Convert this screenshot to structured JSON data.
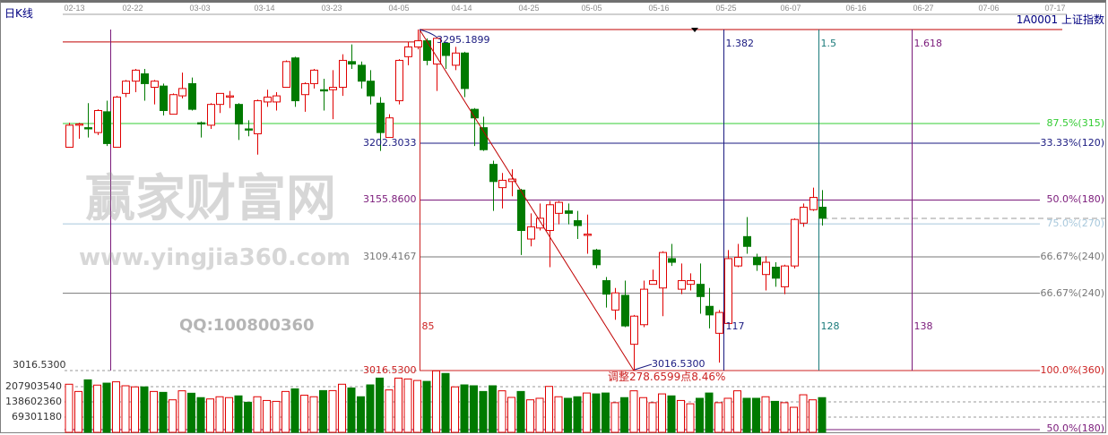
{
  "header": {
    "period_label": "日K线",
    "symbol_label": "1A0001 上证指数"
  },
  "watermark": {
    "site_name": "赢家财富网",
    "url": "www.yingjia360.com",
    "qq": "QQ:100800360"
  },
  "colors": {
    "up": "#e00000",
    "down": "#007a00",
    "fib_top": "#c00000",
    "grid_dash": "#9a9a9a"
  },
  "chart_data": {
    "type": "candlestick",
    "x_ticks": [
      "02-13",
      "02-22",
      "03-03",
      "03-14",
      "03-23",
      "04-05",
      "04-14",
      "04-25",
      "05-05",
      "05-16",
      "05-25",
      "06-07",
      "06-16",
      "06-27",
      "07-06",
      "07-17"
    ],
    "price_range": [
      3016.53,
      3295.1899
    ],
    "candles_ohlc": [
      [
        3199,
        3219,
        3199,
        3217
      ],
      [
        3217,
        3219,
        3206,
        3218
      ],
      [
        3215,
        3235,
        3207,
        3214
      ],
      [
        3211,
        3230,
        3209,
        3229
      ],
      [
        3228,
        3237,
        3200,
        3202
      ],
      [
        3199,
        3241,
        3199,
        3240
      ],
      [
        3243,
        3254,
        3240,
        3253
      ],
      [
        3253,
        3263,
        3244,
        3262
      ],
      [
        3259,
        3263,
        3237,
        3251
      ],
      [
        3248,
        3254,
        3234,
        3253
      ],
      [
        3249,
        3251,
        3225,
        3229
      ],
      [
        3226,
        3243,
        3226,
        3242
      ],
      [
        3241,
        3260,
        3239,
        3247
      ],
      [
        3251,
        3256,
        3229,
        3230
      ],
      [
        3219,
        3220,
        3207,
        3218
      ],
      [
        3217,
        3235,
        3214,
        3234
      ],
      [
        3234,
        3243,
        3227,
        3243
      ],
      [
        3240,
        3245,
        3231,
        3241
      ],
      [
        3234,
        3235,
        3205,
        3218
      ],
      [
        3214,
        3221,
        3208,
        3213
      ],
      [
        3210,
        3238,
        3193,
        3237
      ],
      [
        3236,
        3246,
        3232,
        3240
      ],
      [
        3236,
        3244,
        3229,
        3241
      ],
      [
        3248,
        3270,
        3248,
        3269
      ],
      [
        3272,
        3273,
        3232,
        3237
      ],
      [
        3242,
        3252,
        3228,
        3251
      ],
      [
        3251,
        3263,
        3247,
        3262
      ],
      [
        3246,
        3255,
        3229,
        3245
      ],
      [
        3246,
        3262,
        3222,
        3248
      ],
      [
        3248,
        3275,
        3241,
        3270
      ],
      [
        3269,
        3283,
        3263,
        3267
      ],
      [
        3266,
        3269,
        3247,
        3253
      ],
      [
        3253,
        3262,
        3234,
        3241
      ],
      [
        3235,
        3240,
        3196,
        3211
      ],
      [
        3207,
        3226,
        3207,
        3223
      ],
      [
        3237,
        3271,
        3234,
        3270
      ],
      [
        3273,
        3285,
        3266,
        3281
      ],
      [
        3281,
        3295.19,
        3279,
        3286
      ],
      [
        3286,
        3288,
        3266,
        3270
      ],
      [
        3267,
        3289,
        3245,
        3288
      ],
      [
        3284,
        3285,
        3263,
        3274
      ],
      [
        3266,
        3281,
        3262,
        3276
      ],
      [
        3276,
        3277,
        3240,
        3247
      ],
      [
        3230,
        3231,
        3200,
        3223
      ],
      [
        3215,
        3224,
        3196,
        3197
      ],
      [
        3185,
        3188,
        3147,
        3171
      ],
      [
        3166,
        3178,
        3149,
        3172
      ],
      [
        3171,
        3181,
        3159,
        3173
      ],
      [
        3164,
        3165,
        3111,
        3131
      ],
      [
        3124,
        3145,
        3118,
        3134
      ],
      [
        3133,
        3153,
        3131,
        3141
      ],
      [
        3131,
        3155,
        3101,
        3152
      ],
      [
        3145,
        3155,
        3136,
        3154
      ],
      [
        3147,
        3153,
        3136,
        3145
      ],
      [
        3139,
        3147,
        3124,
        3135
      ],
      [
        3127,
        3144,
        3112,
        3128
      ],
      [
        3115,
        3116,
        3100,
        3103
      ],
      [
        3090,
        3093,
        3068,
        3079
      ],
      [
        3066,
        3084,
        3058,
        3080
      ],
      [
        3078,
        3090,
        3052,
        3053
      ],
      [
        3038,
        3062,
        3016.53,
        3061
      ],
      [
        3054,
        3090,
        3052,
        3083
      ],
      [
        3087,
        3099,
        3087,
        3090
      ],
      [
        3084,
        3114,
        3061,
        3113
      ],
      [
        3108,
        3120,
        3102,
        3105
      ],
      [
        3083,
        3104,
        3079,
        3090
      ],
      [
        3087,
        3096,
        3082,
        3090
      ],
      [
        3087,
        3104,
        3063,
        3077
      ],
      [
        3069,
        3084,
        3051,
        3062
      ],
      [
        3047,
        3066,
        3023,
        3064
      ],
      [
        3055,
        3115,
        3055,
        3108
      ],
      [
        3102,
        3120,
        3101,
        3109
      ],
      [
        3126,
        3142,
        3112,
        3118
      ],
      [
        3109,
        3112,
        3098,
        3103
      ],
      [
        3095,
        3110,
        3082,
        3105
      ],
      [
        3101,
        3105,
        3085,
        3092
      ],
      [
        3085,
        3103,
        3079,
        3102
      ],
      [
        3102,
        3141,
        3100,
        3140
      ],
      [
        3137,
        3153,
        3134,
        3150
      ],
      [
        3148,
        3166,
        3147,
        3158
      ],
      [
        3150,
        3164,
        3135,
        3141
      ]
    ],
    "volumes": [
      219000000,
      186000000,
      239000000,
      215000000,
      224000000,
      230000000,
      212000000,
      207000000,
      207000000,
      186000000,
      182000000,
      148000000,
      189000000,
      178000000,
      158000000,
      152000000,
      162000000,
      158000000,
      166000000,
      137000000,
      162000000,
      145000000,
      141000000,
      186000000,
      198000000,
      169000000,
      162000000,
      190000000,
      190000000,
      219000000,
      202000000,
      162000000,
      216000000,
      247000000,
      193000000,
      247000000,
      243000000,
      236000000,
      232000000,
      280000000,
      268000000,
      207000000,
      216000000,
      212000000,
      186000000,
      212000000,
      189000000,
      159000000,
      186000000,
      148000000,
      155000000,
      209000000,
      162000000,
      155000000,
      162000000,
      179000000,
      175000000,
      179000000,
      135000000,
      158000000,
      189000000,
      158000000,
      135000000,
      175000000,
      166000000,
      145000000,
      130000000,
      155000000,
      179000000,
      135000000,
      155000000,
      189000000,
      155000000,
      155000000,
      162000000,
      141000000,
      135000000,
      114000000,
      171000000,
      148000000,
      158000000
    ],
    "volume_axis_labels": [
      "207903540",
      "138602360",
      "69301180"
    ],
    "volume_axis_values": [
      207903540,
      138602360,
      69301180
    ],
    "price_axis_label": "3016.5300",
    "high_label": "3295.1899",
    "low_label": "3016.5300",
    "adjust_label": "调整278.6599点8.46%",
    "fib_levels": [
      {
        "label": "87.5%(315)",
        "price": 3218.4,
        "color": "#33cc33",
        "left_label": "",
        "full": true
      },
      {
        "label": "33.33%(120)",
        "price": 3202.3033,
        "color": "#1a1a80",
        "left_label": "3202.3033",
        "full": false
      },
      {
        "label": "50.0%(180)",
        "price": 3155.86,
        "color": "#7a1a7a",
        "left_label": "3155.8600",
        "full": false
      },
      {
        "label": "75.0%(270)",
        "price": 3136.4,
        "color": "#a8c8dc",
        "left_label": "",
        "full": true
      },
      {
        "label": "66.67%(240)",
        "price": 3109.4167,
        "color": "#777777",
        "left_label": "3109.4167",
        "full": false
      },
      {
        "label": "66.67%(240)",
        "price": 3079.7,
        "color": "#777777",
        "left_label": "",
        "full": true
      },
      {
        "label": "100.0%(360)",
        "price": 3016.53,
        "color": "#cc2222",
        "left_label": "3016.5300",
        "full": false
      }
    ],
    "volume_fib_label": "50.0%(180)",
    "time_lines": [
      {
        "slot": 5.4,
        "color": "#7a1a7a",
        "top_label": "",
        "bottom_label": ""
      },
      {
        "slot": 38.2,
        "color": "#cc2222",
        "top_label": "",
        "bottom_label": "85"
      },
      {
        "slot": 70.5,
        "color": "#1a1a80",
        "top_label": "1.382",
        "bottom_label": "117"
      },
      {
        "slot": 80.6,
        "color": "#1a7a7a",
        "top_label": "1.5",
        "bottom_label": "128"
      },
      {
        "slot": 90.5,
        "color": "#7a1a7a",
        "top_label": "1.618",
        "bottom_label": "138"
      }
    ],
    "previous_high_price": 3285
  }
}
